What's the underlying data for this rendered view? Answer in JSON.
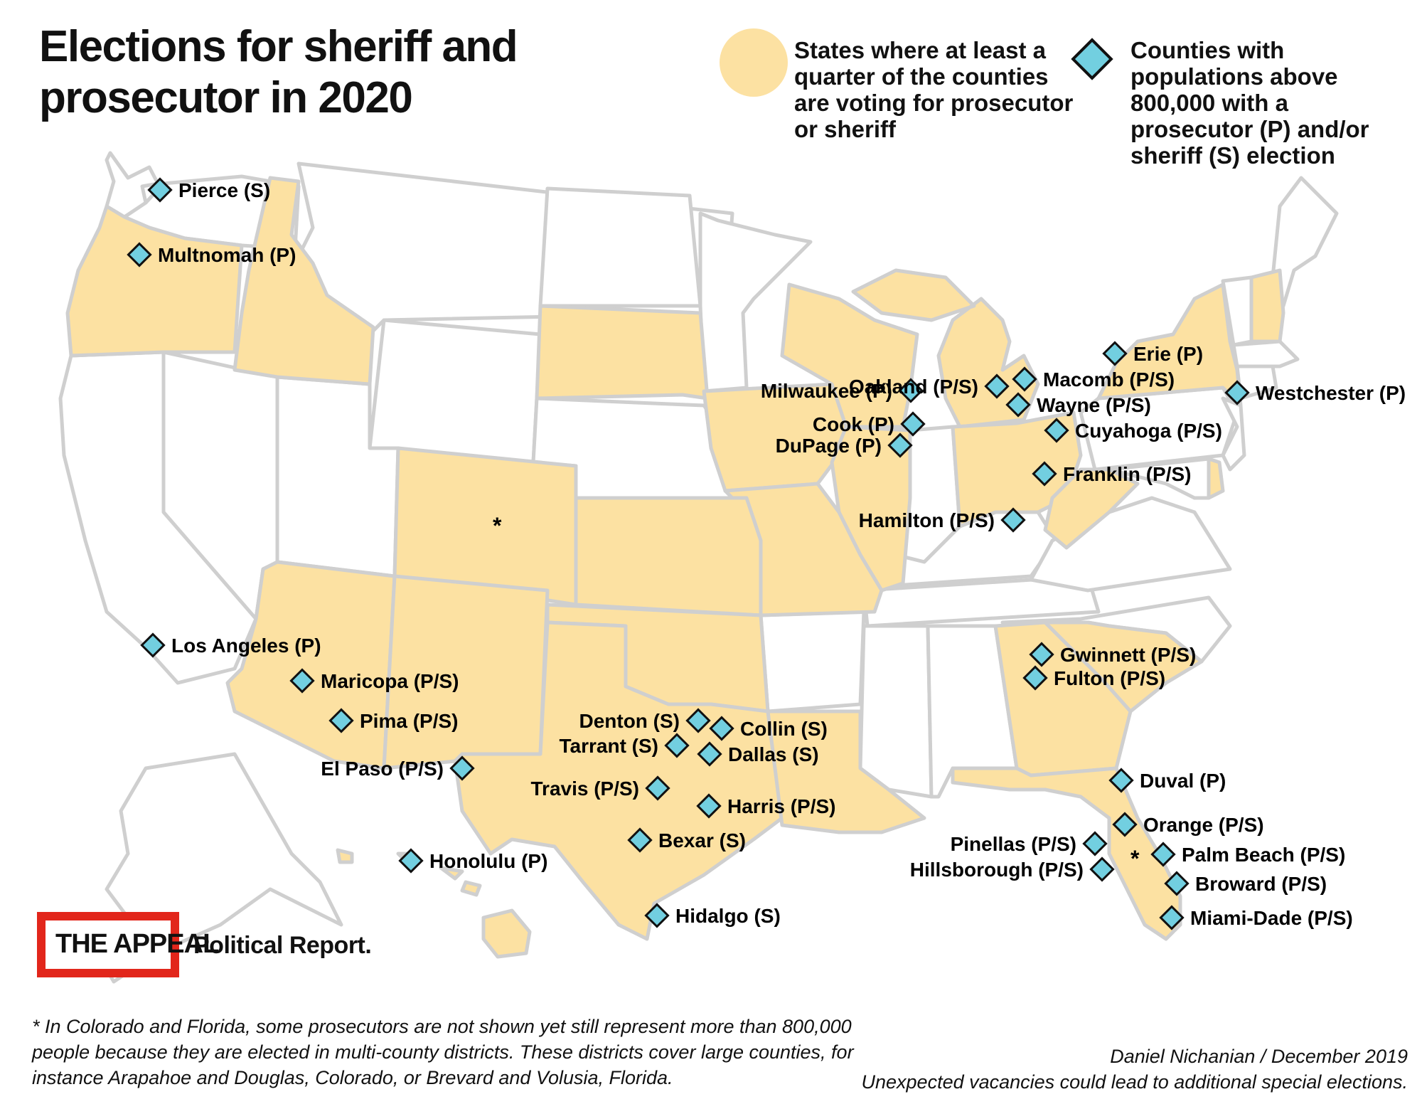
{
  "title": "Elections for sheriff and prosecutor in 2020",
  "legend": {
    "states": {
      "label": "States where at least a quarter of the counties are voting for prosecutor or sheriff",
      "color": "#fce1a2"
    },
    "counties": {
      "label": "Counties with populations above 800,000 with a prosecutor (P) and/or sheriff (S) election",
      "color": "#72cfe0"
    }
  },
  "colors": {
    "highlight_state": "#fce1a2",
    "other_state": "#ffffff",
    "border": "#cfcfcf",
    "marker": "#72cfe0",
    "logo_red": "#e2261b"
  },
  "highlighted_states": [
    "Oregon",
    "Idaho",
    "South Dakota",
    "Colorado",
    "Kansas",
    "Arizona",
    "New Mexico",
    "Texas",
    "Oklahoma",
    "Iowa",
    "Missouri",
    "Wisconsin",
    "Illinois",
    "Michigan",
    "Ohio",
    "West Virginia",
    "Louisiana",
    "Georgia",
    "South Carolina",
    "Florida",
    "New York",
    "New Hampshire",
    "Delaware",
    "Hawaii"
  ],
  "counties": [
    {
      "label": "Pierce (S)"
    },
    {
      "label": "Multnomah (P)"
    },
    {
      "label": "Los Angeles (P)"
    },
    {
      "label": "Maricopa (P/S)"
    },
    {
      "label": "Pima (P/S)"
    },
    {
      "label": "El Paso (P/S)"
    },
    {
      "label": "Honolulu (P)"
    },
    {
      "label": "Denton (S)"
    },
    {
      "label": "Collin (S)"
    },
    {
      "label": "Tarrant (S)"
    },
    {
      "label": "Dallas (S)"
    },
    {
      "label": "Travis (P/S)"
    },
    {
      "label": "Harris (P/S)"
    },
    {
      "label": "Bexar (S)"
    },
    {
      "label": "Hidalgo (S)"
    },
    {
      "label": "Milwaukee (P)"
    },
    {
      "label": "Cook (P)"
    },
    {
      "label": "DuPage (P)"
    },
    {
      "label": "Oakland (P/S)"
    },
    {
      "label": "Macomb (P/S)"
    },
    {
      "label": "Wayne (P/S)"
    },
    {
      "label": "Cuyahoga (P/S)"
    },
    {
      "label": "Franklin (P/S)"
    },
    {
      "label": "Hamilton (P/S)"
    },
    {
      "label": "Erie (P)"
    },
    {
      "label": "Westchester (P)"
    },
    {
      "label": "Gwinnett (P/S)"
    },
    {
      "label": "Fulton (P/S)"
    },
    {
      "label": "Duval (P)"
    },
    {
      "label": "Orange (P/S)"
    },
    {
      "label": "Pinellas (P/S)"
    },
    {
      "label": "Hillsborough (P/S)"
    },
    {
      "label": "Palm Beach (P/S)"
    },
    {
      "label": "Broward (P/S)"
    },
    {
      "label": "Miami-Dade (P/S)"
    }
  ],
  "asterisk": "*",
  "logo": {
    "name": "THE APPEAL",
    "tagline": "Political Report."
  },
  "footnote": "* In Colorado and Florida, some prosecutors are not shown yet still represent more than 800,000 people because they are elected in multi-county districts. These districts cover large counties, for instance Arapahoe and Douglas, Colorado, or Brevard and Volusia, Florida.",
  "credit": "Daniel Nichanian / December 2019",
  "note": "Unexpected vacancies could lead to additional special elections."
}
